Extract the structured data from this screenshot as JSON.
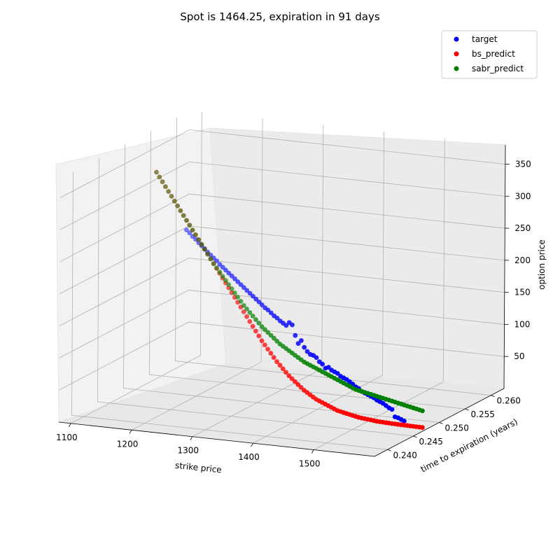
{
  "chart_data": {
    "type": "scatter",
    "title": "Spot is 1464.25, expiration in 91 days",
    "xlabel": "strike price",
    "ylabel": "time to expiration (years)",
    "zlabel": "option price",
    "x_ticks": [
      "1100",
      "1200",
      "1300",
      "1400",
      "1500"
    ],
    "y_ticks": [
      "0.240",
      "0.245",
      "0.250",
      "0.255",
      "0.260"
    ],
    "z_ticks": [
      "50",
      "100",
      "150",
      "200",
      "250",
      "300",
      "350"
    ],
    "xlim": [
      1080,
      1600
    ],
    "ylim": [
      0.2375,
      0.2625
    ],
    "zlim": [
      0,
      380
    ],
    "grid": true,
    "legend_position": "top-right",
    "series": [
      {
        "name": "target",
        "color": "#0000ff",
        "x": [
          1200,
          1205,
          1210,
          1215,
          1220,
          1225,
          1230,
          1235,
          1240,
          1245,
          1250,
          1255,
          1260,
          1265,
          1270,
          1275,
          1280,
          1285,
          1290,
          1295,
          1300,
          1305,
          1310,
          1315,
          1320,
          1325,
          1330,
          1335,
          1340,
          1345,
          1350,
          1355,
          1360,
          1365,
          1370,
          1375,
          1380,
          1385,
          1390,
          1395,
          1400,
          1405,
          1410,
          1415,
          1420,
          1425,
          1430,
          1435,
          1440,
          1445,
          1450,
          1455,
          1460,
          1465,
          1470,
          1475,
          1480,
          1485,
          1490,
          1495,
          1500,
          1505,
          1510,
          1515,
          1520,
          1525,
          1530,
          1535,
          1540,
          1545,
          1550,
          1555,
          1560
        ],
        "y": [
          0.2479,
          0.2479,
          0.2479,
          0.2479,
          0.2479,
          0.2479,
          0.2479,
          0.2479,
          0.2479,
          0.2479,
          0.2479,
          0.2479,
          0.2479,
          0.2479,
          0.2479,
          0.2479,
          0.2479,
          0.2479,
          0.2479,
          0.2479,
          0.2479,
          0.2479,
          0.2479,
          0.2479,
          0.2479,
          0.2479,
          0.2479,
          0.2479,
          0.2479,
          0.2479,
          0.2479,
          0.2479,
          0.2479,
          0.2479,
          0.2479,
          0.2479,
          0.2479,
          0.2479,
          0.2479,
          0.2479,
          0.2479,
          0.2479,
          0.2479,
          0.2479,
          0.2479,
          0.2479,
          0.2479,
          0.2479,
          0.2479,
          0.2479,
          0.2479,
          0.2479,
          0.2479,
          0.2479,
          0.2479,
          0.2479,
          0.2479,
          0.2479,
          0.2479,
          0.2479,
          0.2479,
          0.2479,
          0.2479,
          0.2479,
          0.2479,
          0.2479,
          0.2479,
          0.2479,
          0.2479,
          0.2479,
          0.2479,
          0.2479,
          0.2479
        ],
        "z": [
          268,
          264,
          259,
          255,
          250,
          246,
          242,
          237,
          233,
          229,
          225,
          220,
          216,
          212,
          208,
          204,
          200,
          196,
          192,
          188,
          184,
          180,
          176,
          172,
          168,
          164,
          160,
          157,
          153,
          149,
          146,
          142,
          139,
          136,
          141,
          138,
          122,
          110,
          115,
          105,
          99,
          95,
          94,
          91,
          85,
          82,
          76,
          78,
          74,
          72,
          70,
          66,
          64,
          62,
          59,
          56,
          52,
          50,
          46,
          44,
          42,
          40,
          38,
          35,
          33,
          31,
          28,
          25,
          23,
          12,
          11,
          9,
          7
        ]
      },
      {
        "name": "bs_predict",
        "color": "#ff0000",
        "x": [
          1150,
          1155,
          1160,
          1165,
          1170,
          1175,
          1180,
          1185,
          1190,
          1195,
          1200,
          1205,
          1210,
          1215,
          1220,
          1225,
          1230,
          1235,
          1240,
          1245,
          1250,
          1255,
          1260,
          1265,
          1270,
          1275,
          1280,
          1285,
          1290,
          1295,
          1300,
          1305,
          1310,
          1315,
          1320,
          1325,
          1330,
          1335,
          1340,
          1345,
          1350,
          1355,
          1360,
          1365,
          1370,
          1375,
          1380,
          1385,
          1390,
          1395,
          1400,
          1405,
          1410,
          1415,
          1420,
          1425,
          1430,
          1435,
          1440,
          1445,
          1450,
          1455,
          1460,
          1465,
          1470,
          1475,
          1480,
          1485,
          1490,
          1495,
          1500,
          1505,
          1510,
          1515,
          1520,
          1525,
          1530,
          1535,
          1540,
          1545,
          1550,
          1555,
          1560,
          1565,
          1570,
          1575,
          1580,
          1585,
          1590
        ],
        "y": [
          0.2479,
          0.2479,
          0.2479,
          0.2479,
          0.2479,
          0.2479,
          0.2479,
          0.2479,
          0.2479,
          0.2479,
          0.2479,
          0.2479,
          0.2479,
          0.2479,
          0.2479,
          0.2479,
          0.2479,
          0.2479,
          0.2479,
          0.2479,
          0.2479,
          0.2479,
          0.2479,
          0.2479,
          0.2479,
          0.2479,
          0.2479,
          0.2479,
          0.2479,
          0.2479,
          0.2479,
          0.2479,
          0.2479,
          0.2479,
          0.2479,
          0.2479,
          0.2479,
          0.2479,
          0.2479,
          0.2479,
          0.2479,
          0.2479,
          0.2479,
          0.2479,
          0.2479,
          0.2479,
          0.2479,
          0.2479,
          0.2479,
          0.2479,
          0.2479,
          0.2479,
          0.2479,
          0.2479,
          0.2479,
          0.2479,
          0.2479,
          0.2479,
          0.2479,
          0.2479,
          0.2479,
          0.2479,
          0.2479,
          0.2479,
          0.2479,
          0.2479,
          0.2479,
          0.2479,
          0.2479,
          0.2479,
          0.2479,
          0.2479,
          0.2479,
          0.2479,
          0.2479,
          0.2479,
          0.2479,
          0.2479,
          0.2479,
          0.2479,
          0.2479,
          0.2479,
          0.2479,
          0.2479,
          0.2479,
          0.2479,
          0.2479,
          0.2479,
          0.2479
        ],
        "z": [
          353,
          346,
          339,
          332,
          325,
          318,
          311,
          304,
          297,
          290,
          283,
          276,
          269,
          262,
          255,
          248,
          241,
          234,
          227,
          220,
          213,
          206,
          199,
          192,
          185,
          178,
          171,
          164,
          157,
          150,
          143,
          136,
          129,
          122,
          115,
          108,
          102,
          96,
          90,
          84,
          78,
          73,
          68,
          63,
          58,
          54,
          50,
          46,
          42,
          38,
          35,
          32,
          29,
          26,
          24,
          22,
          20,
          18,
          16,
          14,
          12,
          11,
          10,
          9,
          8,
          7,
          6,
          5,
          4.5,
          4,
          3.5,
          3,
          2.5,
          2,
          1.8,
          1.6,
          1.4,
          1.2,
          1,
          0.9,
          0.8,
          0.7,
          0.6,
          0.5,
          0.4,
          0.3,
          0.2,
          0.1,
          0
        ]
      },
      {
        "name": "sabr_predict",
        "color": "#008000",
        "x": [
          1150,
          1155,
          1160,
          1165,
          1170,
          1175,
          1180,
          1185,
          1190,
          1195,
          1200,
          1205,
          1210,
          1215,
          1220,
          1225,
          1230,
          1235,
          1240,
          1245,
          1250,
          1255,
          1260,
          1265,
          1270,
          1275,
          1280,
          1285,
          1290,
          1295,
          1300,
          1305,
          1310,
          1315,
          1320,
          1325,
          1330,
          1335,
          1340,
          1345,
          1350,
          1355,
          1360,
          1365,
          1370,
          1375,
          1380,
          1385,
          1390,
          1395,
          1400,
          1405,
          1410,
          1415,
          1420,
          1425,
          1430,
          1435,
          1440,
          1445,
          1450,
          1455,
          1460,
          1465,
          1470,
          1475,
          1480,
          1485,
          1490,
          1495,
          1500,
          1505,
          1510,
          1515,
          1520,
          1525,
          1530,
          1535,
          1540,
          1545,
          1550,
          1555,
          1560,
          1565,
          1570,
          1575,
          1580,
          1585,
          1590
        ],
        "y": [
          0.2479,
          0.2479,
          0.2479,
          0.2479,
          0.2479,
          0.2479,
          0.2479,
          0.2479,
          0.2479,
          0.2479,
          0.2479,
          0.2479,
          0.2479,
          0.2479,
          0.2479,
          0.2479,
          0.2479,
          0.2479,
          0.2479,
          0.2479,
          0.2479,
          0.2479,
          0.2479,
          0.2479,
          0.2479,
          0.2479,
          0.2479,
          0.2479,
          0.2479,
          0.2479,
          0.2479,
          0.2479,
          0.2479,
          0.2479,
          0.2479,
          0.2479,
          0.2479,
          0.2479,
          0.2479,
          0.2479,
          0.2479,
          0.2479,
          0.2479,
          0.2479,
          0.2479,
          0.2479,
          0.2479,
          0.2479,
          0.2479,
          0.2479,
          0.2479,
          0.2479,
          0.2479,
          0.2479,
          0.2479,
          0.2479,
          0.2479,
          0.2479,
          0.2479,
          0.2479,
          0.2479,
          0.2479,
          0.2479,
          0.2479,
          0.2479,
          0.2479,
          0.2479,
          0.2479,
          0.2479,
          0.2479,
          0.2479,
          0.2479,
          0.2479,
          0.2479,
          0.2479,
          0.2479,
          0.2479,
          0.2479,
          0.2479,
          0.2479,
          0.2479,
          0.2479,
          0.2479,
          0.2479,
          0.2479,
          0.2479,
          0.2479,
          0.2479,
          0.2479
        ],
        "z": [
          353,
          346,
          339,
          332,
          325,
          318,
          311,
          304,
          297,
          290,
          283,
          276,
          269,
          262,
          255,
          248,
          241,
          234,
          227,
          220,
          214,
          208,
          202,
          196,
          190,
          184,
          178,
          172,
          166,
          160,
          155,
          150,
          145,
          140,
          135,
          130,
          126,
          122,
          118,
          114,
          110,
          106,
          103,
          100,
          97,
          94,
          91,
          88,
          85,
          82,
          80,
          78,
          76,
          74,
          72,
          70,
          68,
          66,
          64,
          62,
          60,
          58,
          56,
          54,
          52,
          50,
          48,
          47,
          46,
          45,
          44,
          43,
          42,
          41,
          40,
          39,
          38,
          37,
          36,
          35,
          34,
          33,
          32,
          31,
          30,
          29,
          28,
          27,
          26
        ]
      }
    ]
  }
}
